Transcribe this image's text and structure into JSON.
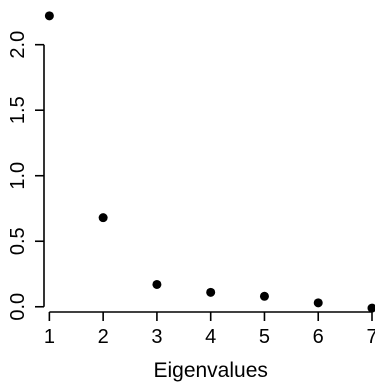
{
  "chart_data": {
    "type": "scatter",
    "title": "",
    "xlabel": "Eigenvalues",
    "ylabel": "",
    "x": [
      1,
      2,
      3,
      4,
      5,
      6,
      7
    ],
    "y": [
      2.22,
      0.68,
      0.17,
      0.11,
      0.08,
      0.03,
      -0.01
    ],
    "xlim": [
      0.9,
      7.0
    ],
    "ylim": [
      -0.04,
      2.28
    ],
    "x_ticks": [
      1,
      2,
      3,
      4,
      5,
      6,
      7
    ],
    "y_ticks": [
      0.0,
      0.5,
      1.0,
      1.5,
      2.0
    ],
    "x_tick_labels": [
      "1",
      "2",
      "3",
      "4",
      "5",
      "6",
      "7"
    ],
    "y_tick_labels": [
      "0.0",
      "0.5",
      "1.0",
      "1.5",
      "2.0"
    ],
    "grid": false,
    "legend": "none",
    "point_color": "#000000"
  }
}
